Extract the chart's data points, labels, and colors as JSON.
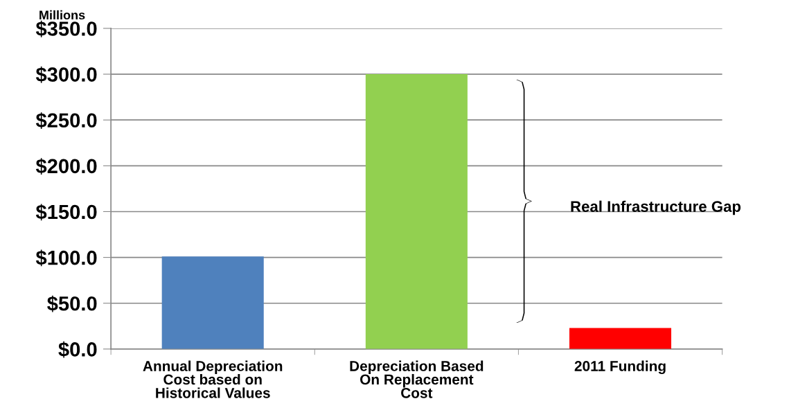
{
  "chart_data": {
    "type": "bar",
    "ylabel": "Millions",
    "categories": [
      "Annual Depreciation\nCost based on\nHistorical Values",
      "Depreciation Based\nOn Replacement\nCost",
      "2011 Funding"
    ],
    "values": [
      101,
      300,
      23
    ],
    "colors": [
      "#4f81bd",
      "#92d050",
      "#ff0000"
    ],
    "ylim": [
      0,
      350
    ],
    "yticks": [
      {
        "value": 0,
        "label": "$0.0"
      },
      {
        "value": 50,
        "label": "$50.0"
      },
      {
        "value": 100,
        "label": "$100.0"
      },
      {
        "value": 150,
        "label": "$150.0"
      },
      {
        "value": 200,
        "label": "$200.0"
      },
      {
        "value": 250,
        "label": "$250.0"
      },
      {
        "value": 300,
        "label": "$300.0"
      },
      {
        "value": 350,
        "label": "$350.0"
      }
    ],
    "grid": "y",
    "annotations": [
      "Real Infrastructure Gap"
    ]
  }
}
